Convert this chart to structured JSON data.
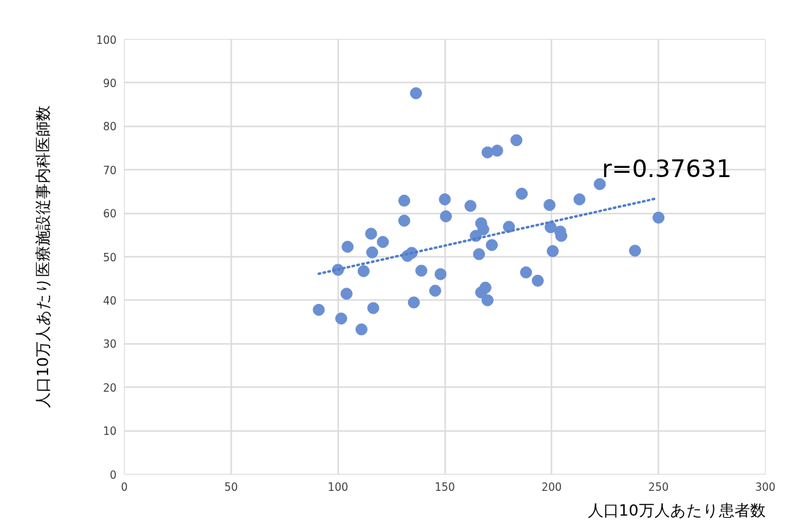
{
  "chart_data": {
    "type": "scatter",
    "xlabel": "人口10万人あたり患者数",
    "ylabel": "人口10万人あたり医療施設従事内科医師数",
    "xlim": [
      0,
      300
    ],
    "xticks": [
      0,
      50,
      100,
      150,
      200,
      250,
      300
    ],
    "ylim": [
      0,
      100
    ],
    "yticks": [
      0,
      10,
      20,
      30,
      40,
      50,
      60,
      70,
      80,
      90,
      100
    ],
    "grid": true,
    "annotations": [
      "r=0.37631"
    ],
    "series": [
      {
        "marker": "circle",
        "color": "#6a8fd2",
        "x": [
          91,
          100,
          101.5,
          104,
          104.5,
          111,
          112,
          115.5,
          116,
          116.5,
          121,
          131,
          131,
          132.5,
          134.5,
          135.5,
          136.5,
          139,
          145.5,
          148,
          150,
          150.5,
          162,
          164.5,
          166,
          167,
          167,
          168,
          169,
          170,
          170,
          172,
          174.5,
          180,
          183.5,
          186,
          188,
          193.5,
          199,
          199.5,
          200.5,
          204,
          204.5,
          213,
          222.5,
          239,
          250
        ],
        "values": [
          37.8,
          47,
          35.8,
          41.5,
          52.3,
          33.3,
          46.7,
          55.3,
          51,
          38.2,
          53.4,
          62.9,
          58.3,
          50.2,
          50.9,
          39.5,
          87.6,
          46.8,
          42.2,
          46,
          63.2,
          59.3,
          61.7,
          54.8,
          50.6,
          57.7,
          41.8,
          56.3,
          42.9,
          40,
          74,
          52.7,
          74.4,
          56.9,
          76.8,
          64.5,
          46.4,
          44.5,
          61.9,
          56.8,
          51.3,
          55.8,
          54.8,
          63.2,
          66.7,
          51.4,
          59
        ]
      },
      {
        "type": "line",
        "color": "#4f7ccb",
        "line_style": "dotted",
        "x": [
          91,
          248
        ],
        "values": [
          46.1,
          63.3
        ]
      }
    ]
  }
}
